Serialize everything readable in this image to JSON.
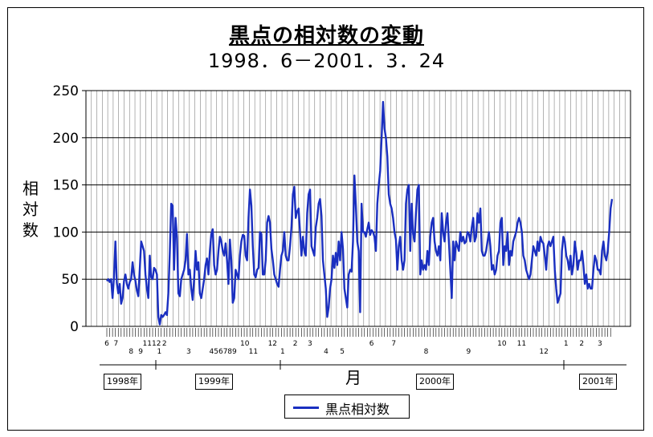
{
  "title": "黒点の相対数の変動",
  "subtitle": "1998．6－2001．3．24",
  "colors": {
    "line": "#1a2fc0",
    "grid": "#808080",
    "axis": "#000000"
  },
  "chart_data": {
    "type": "line",
    "title": "黒点の相対数の変動",
    "subtitle": "1998．6－2001．3．24",
    "xlabel": "月",
    "ylabel": [
      "相",
      "対",
      "数"
    ],
    "ylim": [
      0,
      250
    ],
    "yticks": [
      "0",
      "50",
      "100",
      "150",
      "200",
      "250"
    ],
    "grid": true,
    "legend_position": "bottom-center",
    "month_ticks": [
      {
        "label": "6",
        "t": 0.0,
        "row": 0
      },
      {
        "label": "7",
        "t": 0.018,
        "row": 0
      },
      {
        "label": "8",
        "t": 0.048,
        "row": 1
      },
      {
        "label": "9",
        "t": 0.067,
        "row": 1
      },
      {
        "label": "1112",
        "t": 0.089,
        "row": 0
      },
      {
        "label": "2",
        "t": 0.114,
        "row": 0
      },
      {
        "label": "1",
        "t": 0.104,
        "row": 1
      },
      {
        "label": "3",
        "t": 0.162,
        "row": 1
      },
      {
        "label": "4567",
        "t": 0.221,
        "row": 1
      },
      {
        "label": "89",
        "t": 0.248,
        "row": 1
      },
      {
        "label": "10",
        "t": 0.273,
        "row": 0
      },
      {
        "label": "11",
        "t": 0.29,
        "row": 1
      },
      {
        "label": "12",
        "t": 0.328,
        "row": 0
      },
      {
        "label": "1",
        "t": 0.348,
        "row": 1
      },
      {
        "label": "2",
        "t": 0.373,
        "row": 0
      },
      {
        "label": "3",
        "t": 0.402,
        "row": 0
      },
      {
        "label": "4",
        "t": 0.434,
        "row": 1
      },
      {
        "label": "5",
        "t": 0.466,
        "row": 1
      },
      {
        "label": "6",
        "t": 0.524,
        "row": 0
      },
      {
        "label": "7",
        "t": 0.568,
        "row": 0
      },
      {
        "label": "8",
        "t": 0.632,
        "row": 1
      },
      {
        "label": "9",
        "t": 0.716,
        "row": 1
      },
      {
        "label": "10",
        "t": 0.782,
        "row": 0
      },
      {
        "label": "11",
        "t": 0.821,
        "row": 0
      },
      {
        "label": "12",
        "t": 0.865,
        "row": 1
      },
      {
        "label": "1",
        "t": 0.909,
        "row": 0
      },
      {
        "label": "2",
        "t": 0.94,
        "row": 0
      },
      {
        "label": "3",
        "t": 0.976,
        "row": 0
      }
    ],
    "years": [
      {
        "label": "1998年",
        "t": 0.0
      },
      {
        "label": "1999年",
        "t": 0.22
      },
      {
        "label": "2000年",
        "t": 0.62
      },
      {
        "label": "2001年",
        "t": 0.98
      }
    ],
    "series": [
      {
        "name": "黒点相対数",
        "values": [
          48,
          50,
          47,
          50,
          30,
          52,
          90,
          46,
          35,
          45,
          24,
          30,
          48,
          55,
          45,
          40,
          47,
          50,
          68,
          55,
          48,
          38,
          32,
          60,
          90,
          85,
          80,
          55,
          40,
          30,
          75,
          52,
          50,
          62,
          60,
          55,
          10,
          2,
          12,
          10,
          12,
          15,
          12,
          35,
          78,
          130,
          128,
          60,
          115,
          95,
          35,
          32,
          50,
          55,
          60,
          70,
          98,
          55,
          60,
          40,
          28,
          50,
          80,
          60,
          68,
          35,
          30,
          40,
          50,
          65,
          72,
          55,
          80,
          98,
          103,
          65,
          55,
          60,
          80,
          95,
          90,
          80,
          75,
          88,
          70,
          45,
          92,
          70,
          25,
          30,
          60,
          55,
          50,
          75,
          90,
          97,
          96,
          75,
          70,
          115,
          145,
          128,
          85,
          55,
          52,
          60,
          62,
          100,
          98,
          55,
          55,
          70,
          110,
          117,
          110,
          82,
          70,
          55,
          50,
          45,
          42,
          60,
          75,
          80,
          100,
          75,
          70,
          70,
          85,
          105,
          140,
          148,
          115,
          122,
          125,
          100,
          75,
          95,
          80,
          75,
          120,
          140,
          145,
          85,
          80,
          75,
          105,
          115,
          130,
          135,
          117,
          70,
          55,
          40,
          10,
          20,
          40,
          50,
          75,
          62,
          78,
          65,
          90,
          70,
          100,
          82,
          40,
          30,
          20,
          55,
          60,
          58,
          90,
          160,
          128,
          90,
          80,
          15,
          130,
          100,
          100,
          95,
          103,
          110,
          97,
          102,
          100,
          95,
          80,
          130,
          150,
          165,
          200,
          238,
          210,
          200,
          180,
          140,
          130,
          125,
          115,
          100,
          92,
          60,
          85,
          95,
          70,
          60,
          70,
          130,
          145,
          150,
          80,
          130,
          98,
          90,
          120,
          145,
          150,
          55,
          70,
          60,
          65,
          60,
          80,
          65,
          95,
          110,
          115,
          90,
          80,
          75,
          85,
          70,
          120,
          100,
          90,
          110,
          120,
          90,
          60,
          30,
          90,
          70,
          90,
          85,
          80,
          100,
          90,
          95,
          88,
          90,
          100,
          98,
          90,
          105,
          115,
          90,
          95,
          120,
          110,
          125,
          80,
          75,
          75,
          80,
          90,
          100,
          85,
          60,
          65,
          55,
          60,
          75,
          80,
          110,
          115,
          65,
          85,
          80,
          100,
          65,
          80,
          75,
          90,
          95,
          100,
          110,
          115,
          110,
          100,
          75,
          70,
          60,
          55,
          50,
          55,
          70,
          85,
          80,
          75,
          90,
          80,
          95,
          90,
          88,
          75,
          60,
          85,
          90,
          85,
          90,
          95,
          60,
          40,
          25,
          30,
          35,
          80,
          95,
          90,
          75,
          70,
          60,
          75,
          55,
          65,
          90,
          78,
          60,
          70,
          70,
          80,
          65,
          45,
          55,
          40,
          45,
          40,
          40,
          60,
          75,
          70,
          60,
          60,
          55,
          80,
          90,
          75,
          70,
          80,
          100,
          125,
          135
        ]
      }
    ]
  },
  "legend": {
    "label": "黒点相対数"
  }
}
